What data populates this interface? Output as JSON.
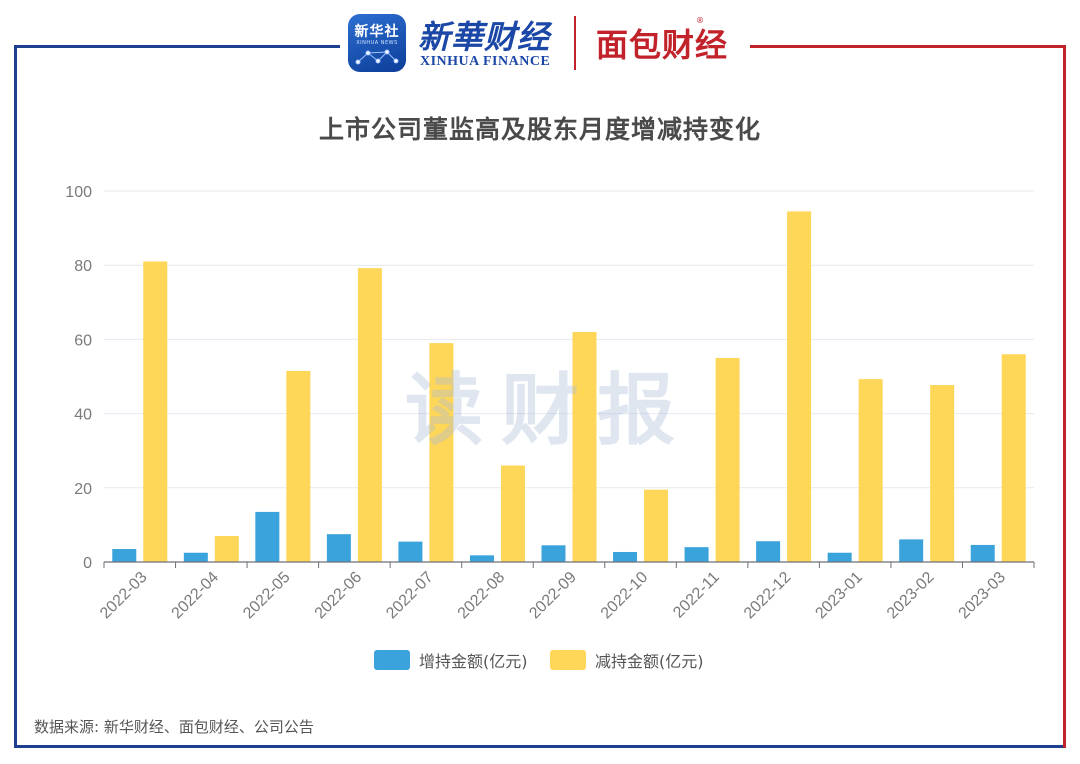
{
  "header": {
    "xinhua_badge": "新华社",
    "xinhua_badge_sub": "XINHUA NEWS",
    "xinhua_finance_cn": "新華财经",
    "xinhua_finance_en": "XINHUA FINANCE",
    "mianbao_logo": "面包财经",
    "mianbao_mark": "®"
  },
  "watermark": "读财报",
  "source": "数据来源: 新华财经、面包财经、公司公告",
  "colors": {
    "increase": "#3ba3dc",
    "decrease": "#fed658",
    "grid": "#e6e9f1",
    "frame_left": "#1e3f8f",
    "frame_right": "#c2232b"
  },
  "chart_data": {
    "type": "bar",
    "title": "上市公司董监高及股东月度增减持变化",
    "xlabel": "",
    "ylabel": "",
    "ylim": [
      0,
      100
    ],
    "yticks": [
      0,
      20,
      40,
      60,
      80,
      100
    ],
    "categories": [
      "2022-03",
      "2022-04",
      "2022-05",
      "2022-06",
      "2022-07",
      "2022-08",
      "2022-09",
      "2022-10",
      "2022-11",
      "2022-12",
      "2023-01",
      "2023-02",
      "2023-03"
    ],
    "series": [
      {
        "name": "增持金额(亿元)",
        "values": [
          3.5,
          2.5,
          13.5,
          7.5,
          5.5,
          1.8,
          4.5,
          2.7,
          4.0,
          5.6,
          2.5,
          6.1,
          4.6
        ]
      },
      {
        "name": "减持金额(亿元)",
        "values": [
          81,
          7,
          51.5,
          79.2,
          59,
          26,
          62,
          19.5,
          55,
          94.5,
          49.3,
          47.7,
          56
        ]
      }
    ],
    "legend": "bottom",
    "grid": true
  }
}
